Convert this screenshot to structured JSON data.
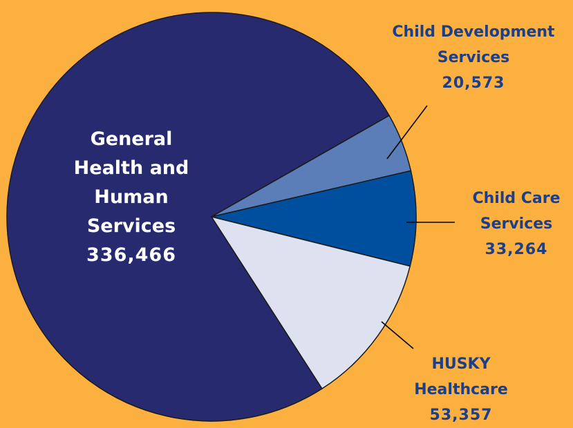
{
  "chart_data": {
    "type": "pie",
    "title": "",
    "slices": [
      {
        "label_lines": [
          "General",
          "Health and",
          "Human",
          "Services"
        ],
        "value": 336466,
        "value_label": "336,466",
        "color": "#272a6e",
        "text_color": "#ffffff"
      },
      {
        "label_lines": [
          "Child Development",
          "Services"
        ],
        "value": 20573,
        "value_label": "20,573",
        "color": "#5b7db8",
        "text_color": "#1c3f8a"
      },
      {
        "label_lines": [
          "Child Care",
          "Services"
        ],
        "value": 33264,
        "value_label": "33,264",
        "color": "#004f9e",
        "text_color": "#1c3f8a"
      },
      {
        "label_lines": [
          "HUSKY",
          "Healthcare"
        ],
        "value": 53357,
        "value_label": "53,357",
        "color": "#dde1f0",
        "text_color": "#1c3f8a"
      }
    ],
    "legend": "none"
  }
}
